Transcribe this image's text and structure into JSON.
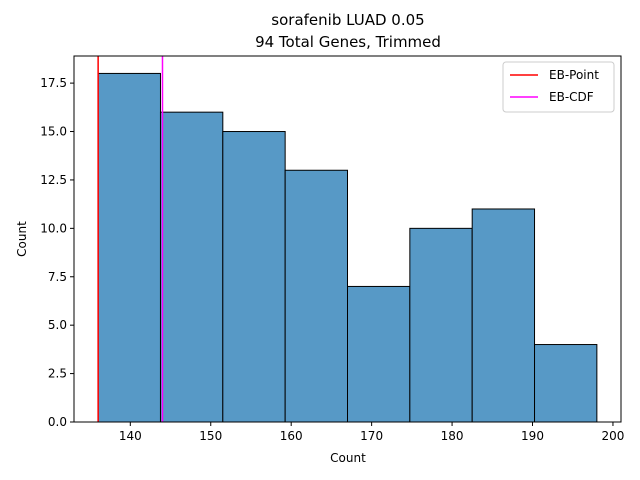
{
  "chart_data": {
    "type": "bar",
    "title": "sorafenib LUAD 0.05",
    "subtitle": "94 Total Genes, Trimmed",
    "xlabel": "Count",
    "ylabel": "Count",
    "bin_edges": [
      136.0,
      143.75,
      151.5,
      159.25,
      167.0,
      174.75,
      182.5,
      190.25,
      198.0
    ],
    "values": [
      18,
      16,
      15,
      13,
      7,
      10,
      11,
      4
    ],
    "xlim": [
      133,
      201
    ],
    "ylim": [
      0,
      18.9
    ],
    "xticks": [
      140,
      150,
      160,
      170,
      180,
      190,
      200
    ],
    "yticks": [
      0.0,
      2.5,
      5.0,
      7.5,
      10.0,
      12.5,
      15.0,
      17.5
    ],
    "bar_color": "#5799c6",
    "vlines": [
      {
        "name": "EB-Point",
        "x": 136.0,
        "color": "#ff0000"
      },
      {
        "name": "EB-CDF",
        "x": 144.0,
        "color": "#ff00ff"
      }
    ],
    "legend_position": "top-right",
    "grid": false
  }
}
